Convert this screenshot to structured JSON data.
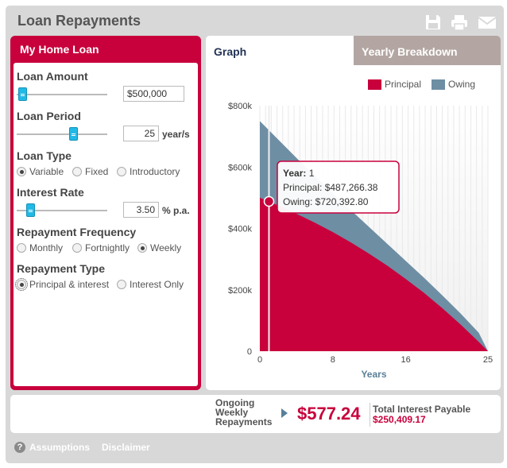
{
  "app": {
    "title": "Loan Repayments"
  },
  "toolbar": {
    "icons": [
      "save-icon",
      "print-icon",
      "email-icon"
    ]
  },
  "form": {
    "header": "My Home Loan",
    "loan_amount": {
      "label": "Loan Amount",
      "value": "$500,000",
      "slider_fraction": 0.06
    },
    "loan_period": {
      "label": "Loan Period",
      "value": "25",
      "unit": "year/s",
      "slider_fraction": 0.62
    },
    "loan_type": {
      "label": "Loan Type",
      "options": [
        "Variable",
        "Fixed",
        "Introductory"
      ],
      "selected": "Variable"
    },
    "interest_rate": {
      "label": "Interest Rate",
      "value": "3.50",
      "unit": "% p.a.",
      "slider_fraction": 0.15
    },
    "repayment_frequency": {
      "label": "Repayment Frequency",
      "options": [
        "Monthly",
        "Fortnightly",
        "Weekly"
      ],
      "selected": "Weekly"
    },
    "repayment_type": {
      "label": "Repayment Type",
      "options": [
        "Principal & interest",
        "Interest Only"
      ],
      "selected": "Principal & interest"
    }
  },
  "tabs": {
    "graph": "Graph",
    "yearly": "Yearly Breakdown",
    "active": "Graph"
  },
  "colors": {
    "accent": "#c8003c",
    "principal": "#c8003c",
    "owing": "#6e8ea4"
  },
  "chart_data": {
    "type": "area",
    "legend": [
      "Principal",
      "Owing"
    ],
    "legend_position": "top-right",
    "xlabel": "Years",
    "xlim": [
      0,
      25
    ],
    "ylim": [
      0,
      800000
    ],
    "x_ticks": [
      "0",
      "8",
      "16",
      "25"
    ],
    "y_ticks": [
      "0",
      "$200k",
      "$400k",
      "$600k",
      "$800k"
    ],
    "x": [
      0,
      2,
      4,
      6,
      8,
      10,
      12,
      14,
      16,
      18,
      20,
      22,
      24,
      25
    ],
    "series": [
      {
        "name": "Principal",
        "values": [
          500000,
          475000,
          448000,
          419000,
          388000,
          354000,
          317000,
          278000,
          235000,
          190000,
          140000,
          87000,
          30000,
          0
        ]
      },
      {
        "name": "Owing",
        "values": [
          750000,
          690000,
          630000,
          572000,
          515000,
          459000,
          404000,
          349000,
          294000,
          239000,
          182000,
          123000,
          60000,
          0
        ]
      }
    ],
    "tooltip": {
      "year_label": "Year:",
      "year": "1",
      "principal_label": "Principal:",
      "principal": "$487,266.38",
      "owing_label": "Owing:",
      "owing": "$720,392.80",
      "x_value": 1
    }
  },
  "summary": {
    "ongoing_label_1": "Ongoing",
    "ongoing_label_2": "Weekly",
    "ongoing_label_3": "Repayments",
    "amount": "$577.24",
    "total_interest_label": "Total Interest Payable",
    "total_interest": "$250,409.17"
  },
  "footer": {
    "help_glyph": "?",
    "assumptions": "Assumptions",
    "disclaimer": "Disclaimer"
  }
}
